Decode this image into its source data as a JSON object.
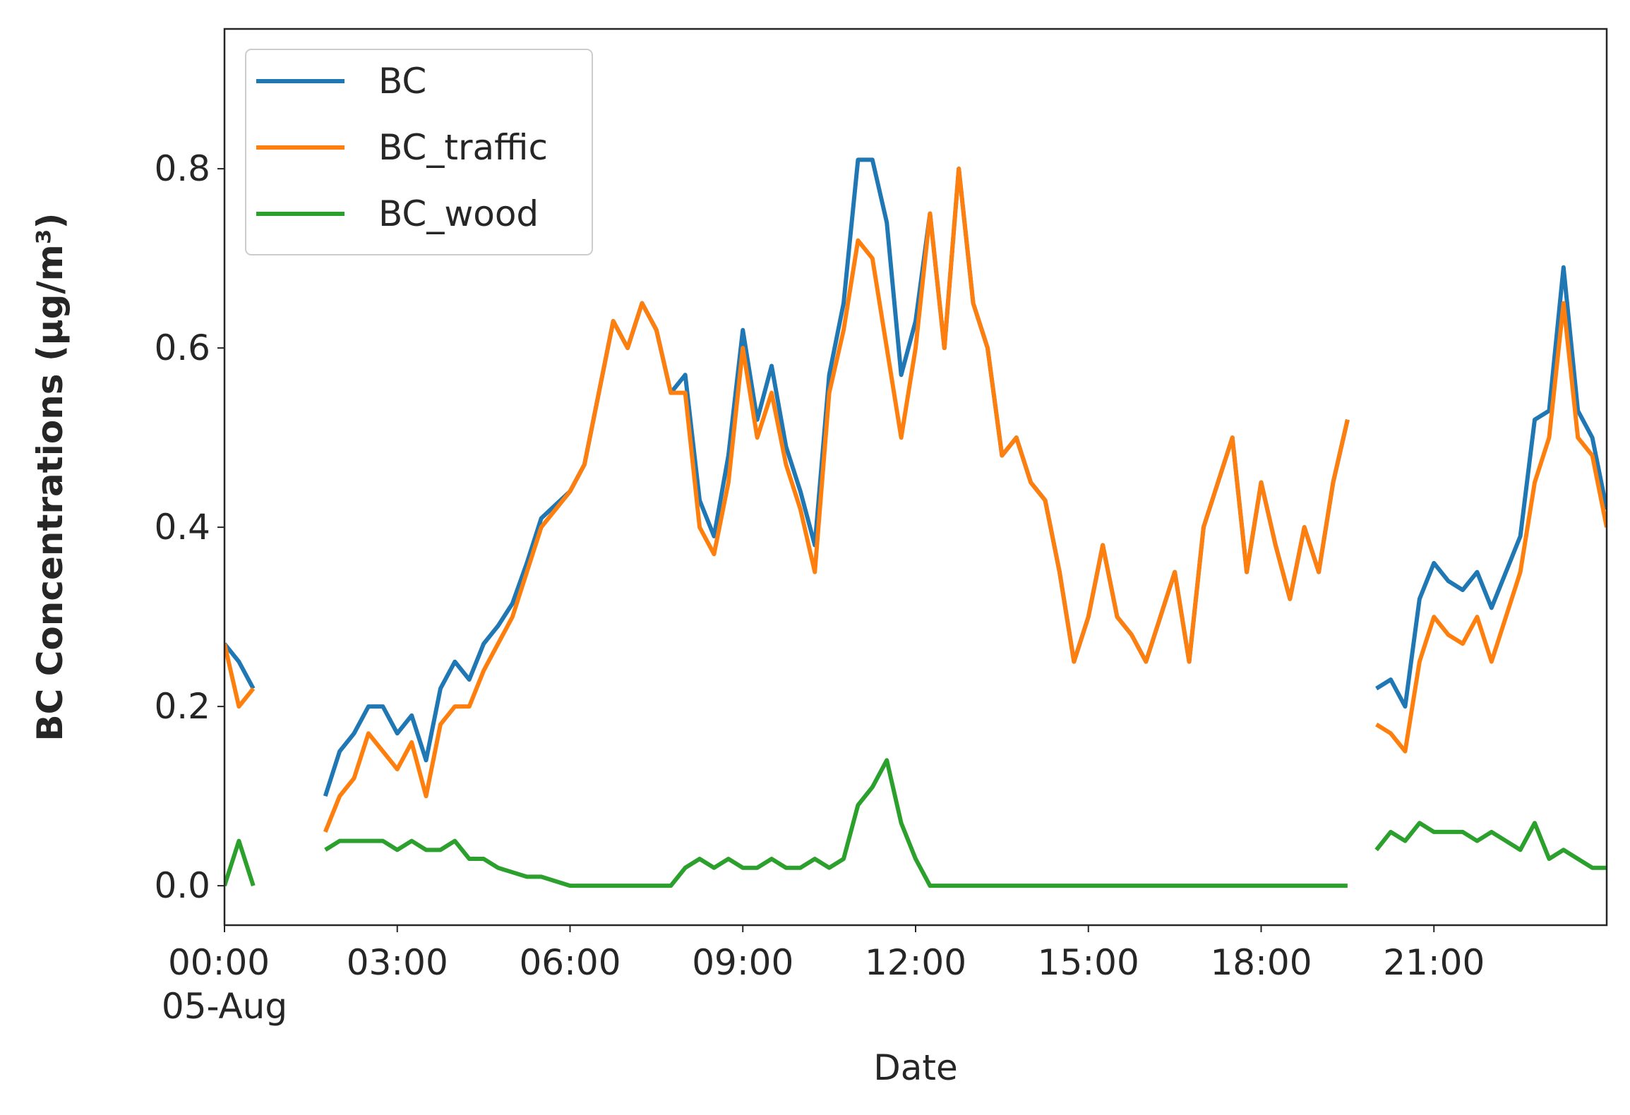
{
  "chart_data": {
    "type": "line",
    "x_label": "Date",
    "y_label": "BC Concentrations (μg/m³)",
    "x": [
      0,
      0.25,
      0.5,
      0.75,
      1,
      1.25,
      1.5,
      1.75,
      2,
      2.25,
      2.5,
      2.75,
      3,
      3.25,
      3.5,
      3.75,
      4,
      4.25,
      4.5,
      4.75,
      5,
      5.25,
      5.5,
      5.75,
      6,
      6.25,
      6.5,
      6.75,
      7,
      7.25,
      7.5,
      7.75,
      8,
      8.25,
      8.5,
      8.75,
      9,
      9.25,
      9.5,
      9.75,
      10,
      10.25,
      10.5,
      10.75,
      11,
      11.25,
      11.5,
      11.75,
      12,
      12.25,
      12.5,
      12.75,
      13,
      13.25,
      13.5,
      13.75,
      14,
      14.25,
      14.5,
      14.75,
      15,
      15.25,
      15.5,
      15.75,
      16,
      16.25,
      16.5,
      16.75,
      17,
      17.25,
      17.5,
      17.75,
      18,
      18.25,
      18.5,
      18.75,
      19,
      19.25,
      19.5,
      19.75,
      20,
      20.25,
      20.5,
      20.75,
      21,
      21.25,
      21.5,
      21.75,
      22,
      22.25,
      22.5,
      22.75,
      23,
      23.25,
      23.5,
      23.75,
      24
    ],
    "series": [
      {
        "name": "BC",
        "color": "#1f77b4",
        "values": [
          0.27,
          0.25,
          0.22,
          null,
          null,
          null,
          null,
          0.1,
          0.15,
          0.17,
          0.2,
          0.2,
          0.17,
          0.19,
          0.14,
          0.22,
          0.25,
          0.23,
          0.27,
          0.29,
          0.315,
          0.36,
          0.41,
          0.425,
          0.44,
          0.47,
          0.55,
          0.63,
          0.6,
          0.65,
          0.62,
          0.55,
          0.57,
          0.43,
          0.39,
          0.48,
          0.62,
          0.52,
          0.58,
          0.49,
          0.44,
          0.38,
          0.57,
          0.65,
          0.81,
          0.81,
          0.74,
          0.57,
          0.63,
          0.75,
          0.6,
          0.8,
          0.65,
          0.6,
          0.48,
          0.5,
          0.45,
          0.43,
          0.35,
          0.25,
          0.3,
          0.38,
          0.3,
          0.28,
          0.25,
          0.3,
          0.35,
          0.25,
          0.4,
          0.45,
          0.5,
          0.35,
          0.45,
          0.38,
          0.32,
          0.4,
          0.35,
          0.45,
          0.52,
          null,
          0.22,
          0.23,
          0.2,
          0.32,
          0.36,
          0.34,
          0.33,
          0.35,
          0.31,
          0.35,
          0.39,
          0.52,
          0.53,
          0.69,
          0.53,
          0.5,
          0.42
        ]
      },
      {
        "name": "BC_traffic",
        "color": "#ff7f0e",
        "values": [
          0.27,
          0.2,
          0.22,
          null,
          null,
          null,
          null,
          0.06,
          0.1,
          0.12,
          0.17,
          0.15,
          0.13,
          0.16,
          0.1,
          0.18,
          0.2,
          0.2,
          0.24,
          0.27,
          0.3,
          0.35,
          0.4,
          0.42,
          0.44,
          0.47,
          0.55,
          0.63,
          0.6,
          0.65,
          0.62,
          0.55,
          0.55,
          0.4,
          0.37,
          0.45,
          0.6,
          0.5,
          0.55,
          0.47,
          0.42,
          0.35,
          0.55,
          0.62,
          0.72,
          0.7,
          0.6,
          0.5,
          0.6,
          0.75,
          0.6,
          0.8,
          0.65,
          0.6,
          0.48,
          0.5,
          0.45,
          0.43,
          0.35,
          0.25,
          0.3,
          0.38,
          0.3,
          0.28,
          0.25,
          0.3,
          0.35,
          0.25,
          0.4,
          0.45,
          0.5,
          0.35,
          0.45,
          0.38,
          0.32,
          0.4,
          0.35,
          0.45,
          0.52,
          null,
          0.18,
          0.17,
          0.15,
          0.25,
          0.3,
          0.28,
          0.27,
          0.3,
          0.25,
          0.3,
          0.35,
          0.45,
          0.5,
          0.65,
          0.5,
          0.48,
          0.4
        ]
      },
      {
        "name": "BC_wood",
        "color": "#2ca02c",
        "values": [
          0.0,
          0.05,
          0.0,
          null,
          null,
          null,
          null,
          0.04,
          0.05,
          0.05,
          0.05,
          0.05,
          0.04,
          0.05,
          0.04,
          0.04,
          0.05,
          0.03,
          0.03,
          0.02,
          0.015,
          0.01,
          0.01,
          0.005,
          0.0,
          0.0,
          0.0,
          0.0,
          0.0,
          0.0,
          0.0,
          0.0,
          0.02,
          0.03,
          0.02,
          0.03,
          0.02,
          0.02,
          0.03,
          0.02,
          0.02,
          0.03,
          0.02,
          0.03,
          0.09,
          0.11,
          0.14,
          0.07,
          0.03,
          0.0,
          0.0,
          0.0,
          0.0,
          0.0,
          0.0,
          0.0,
          0.0,
          0.0,
          0.0,
          0.0,
          0.0,
          0.0,
          0.0,
          0.0,
          0.0,
          0.0,
          0.0,
          0.0,
          0.0,
          0.0,
          0.0,
          0.0,
          0.0,
          0.0,
          0.0,
          0.0,
          0.0,
          0.0,
          0.0,
          null,
          0.04,
          0.06,
          0.05,
          0.07,
          0.06,
          0.06,
          0.06,
          0.05,
          0.06,
          0.05,
          0.04,
          0.07,
          0.03,
          0.04,
          0.03,
          0.02,
          0.02
        ]
      }
    ],
    "xlim": [
      0,
      24
    ],
    "xticks": [
      {
        "value": 0,
        "label": "00:00\n05-Aug"
      },
      {
        "value": 3,
        "label": "03:00"
      },
      {
        "value": 6,
        "label": "06:00"
      },
      {
        "value": 9,
        "label": "09:00"
      },
      {
        "value": 12,
        "label": "12:00"
      },
      {
        "value": 15,
        "label": "15:00"
      },
      {
        "value": 18,
        "label": "18:00"
      },
      {
        "value": 21,
        "label": "21:00"
      }
    ],
    "ylim": [
      -0.044,
      0.956
    ],
    "yticks": [
      {
        "value": 0,
        "label": "0.0"
      },
      0.2,
      0.4,
      0.6,
      0.8
    ],
    "grid": false,
    "legend": "upper left",
    "y_label_color": "#7b0000"
  }
}
